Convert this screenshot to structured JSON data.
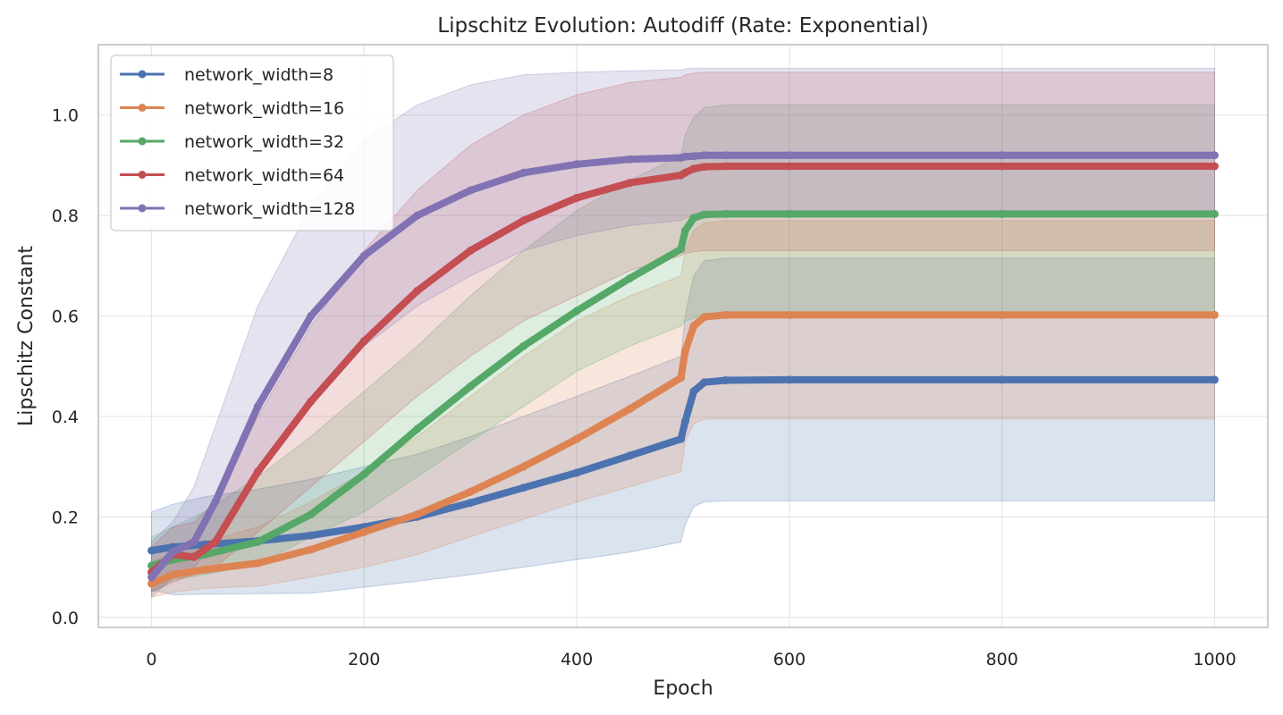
{
  "chart_data": {
    "type": "line",
    "title": "Lipschitz Evolution: Autodiff (Rate: Exponential)",
    "xlabel": "Epoch",
    "ylabel": "Lipschitz Constant",
    "xlim": [
      -50,
      1050
    ],
    "ylim": [
      -0.02,
      1.14
    ],
    "xticks": [
      0,
      200,
      400,
      600,
      800,
      1000
    ],
    "xtick_labels": [
      "0",
      "200",
      "400",
      "600",
      "800",
      "1000"
    ],
    "yticks": [
      0.0,
      0.2,
      0.4,
      0.6,
      0.8,
      1.0
    ],
    "ytick_labels": [
      "0.0",
      "0.2",
      "0.4",
      "0.6",
      "0.8",
      "1.0"
    ],
    "grid": true,
    "legend_position": "top-left",
    "series": [
      {
        "name": "network_width=8",
        "color": "#4c72b0",
        "x": [
          0,
          20,
          50,
          100,
          150,
          200,
          250,
          300,
          350,
          400,
          450,
          498,
          502,
          510,
          520,
          540,
          600,
          800,
          1000
        ],
        "values": [
          0.133,
          0.14,
          0.145,
          0.152,
          0.163,
          0.18,
          0.2,
          0.228,
          0.258,
          0.288,
          0.322,
          0.355,
          0.39,
          0.45,
          0.468,
          0.472,
          0.473,
          0.473,
          0.473
        ],
        "lower": [
          0.055,
          0.045,
          0.046,
          0.047,
          0.048,
          0.06,
          0.072,
          0.085,
          0.1,
          0.115,
          0.13,
          0.15,
          0.185,
          0.22,
          0.23,
          0.232,
          0.232,
          0.232,
          0.232
        ],
        "upper": [
          0.21,
          0.225,
          0.24,
          0.255,
          0.275,
          0.3,
          0.325,
          0.36,
          0.4,
          0.44,
          0.48,
          0.52,
          0.6,
          0.68,
          0.71,
          0.715,
          0.715,
          0.715,
          0.715
        ]
      },
      {
        "name": "network_width=16",
        "color": "#dd8452",
        "x": [
          0,
          20,
          50,
          100,
          150,
          200,
          250,
          300,
          350,
          400,
          450,
          498,
          502,
          510,
          520,
          540,
          600,
          800,
          1000
        ],
        "values": [
          0.067,
          0.085,
          0.095,
          0.108,
          0.135,
          0.17,
          0.205,
          0.25,
          0.3,
          0.355,
          0.415,
          0.477,
          0.53,
          0.58,
          0.598,
          0.602,
          0.602,
          0.602,
          0.602
        ],
        "lower": [
          0.04,
          0.05,
          0.058,
          0.062,
          0.08,
          0.1,
          0.125,
          0.16,
          0.195,
          0.23,
          0.26,
          0.29,
          0.35,
          0.385,
          0.395,
          0.395,
          0.395,
          0.395,
          0.395
        ],
        "upper": [
          0.11,
          0.13,
          0.15,
          0.18,
          0.23,
          0.29,
          0.36,
          0.44,
          0.52,
          0.59,
          0.64,
          0.68,
          0.73,
          0.77,
          0.785,
          0.79,
          0.79,
          0.79,
          0.79
        ]
      },
      {
        "name": "network_width=32",
        "color": "#55a868",
        "x": [
          0,
          20,
          50,
          100,
          150,
          200,
          250,
          300,
          350,
          400,
          450,
          498,
          502,
          510,
          520,
          540,
          600,
          800,
          1000
        ],
        "values": [
          0.103,
          0.115,
          0.125,
          0.15,
          0.205,
          0.285,
          0.375,
          0.46,
          0.54,
          0.61,
          0.675,
          0.733,
          0.77,
          0.795,
          0.802,
          0.803,
          0.803,
          0.803,
          0.803
        ],
        "lower": [
          0.05,
          0.075,
          0.085,
          0.105,
          0.16,
          0.21,
          0.28,
          0.35,
          0.42,
          0.49,
          0.54,
          0.58,
          0.59,
          0.595,
          0.598,
          0.598,
          0.598,
          0.598,
          0.598
        ],
        "upper": [
          0.16,
          0.18,
          0.21,
          0.28,
          0.36,
          0.45,
          0.54,
          0.64,
          0.73,
          0.81,
          0.87,
          0.92,
          0.96,
          0.995,
          1.015,
          1.02,
          1.02,
          1.02,
          1.02
        ]
      },
      {
        "name": "network_width=64",
        "color": "#c44e52",
        "x": [
          0,
          20,
          40,
          60,
          100,
          150,
          200,
          250,
          300,
          350,
          400,
          450,
          498,
          502,
          510,
          520,
          540,
          600,
          800,
          1000
        ],
        "values": [
          0.09,
          0.125,
          0.12,
          0.15,
          0.29,
          0.43,
          0.55,
          0.65,
          0.73,
          0.79,
          0.835,
          0.865,
          0.88,
          0.885,
          0.893,
          0.897,
          0.898,
          0.898,
          0.898,
          0.898
        ],
        "lower": [
          0.05,
          0.07,
          0.085,
          0.1,
          0.17,
          0.26,
          0.35,
          0.44,
          0.52,
          0.59,
          0.64,
          0.69,
          0.72,
          0.725,
          0.728,
          0.73,
          0.73,
          0.73,
          0.73,
          0.73
        ],
        "upper": [
          0.14,
          0.18,
          0.19,
          0.23,
          0.4,
          0.58,
          0.73,
          0.85,
          0.94,
          1.0,
          1.04,
          1.065,
          1.075,
          1.08,
          1.083,
          1.085,
          1.085,
          1.085,
          1.085,
          1.085
        ]
      },
      {
        "name": "network_width=128",
        "color": "#8172b3",
        "x": [
          0,
          20,
          40,
          60,
          100,
          150,
          200,
          250,
          300,
          350,
          400,
          450,
          498,
          502,
          510,
          520,
          540,
          600,
          800,
          1000
        ],
        "values": [
          0.08,
          0.13,
          0.15,
          0.23,
          0.42,
          0.6,
          0.72,
          0.8,
          0.85,
          0.885,
          0.902,
          0.912,
          0.915,
          0.917,
          0.918,
          0.92,
          0.92,
          0.92,
          0.92,
          0.92
        ],
        "lower": [
          0.04,
          0.08,
          0.1,
          0.15,
          0.28,
          0.42,
          0.54,
          0.62,
          0.68,
          0.73,
          0.76,
          0.78,
          0.79,
          0.795,
          0.8,
          0.805,
          0.805,
          0.805,
          0.805,
          0.805
        ],
        "upper": [
          0.15,
          0.19,
          0.26,
          0.38,
          0.62,
          0.82,
          0.95,
          1.02,
          1.06,
          1.08,
          1.085,
          1.088,
          1.09,
          1.092,
          1.093,
          1.093,
          1.093,
          1.093,
          1.093,
          1.093
        ]
      }
    ]
  }
}
